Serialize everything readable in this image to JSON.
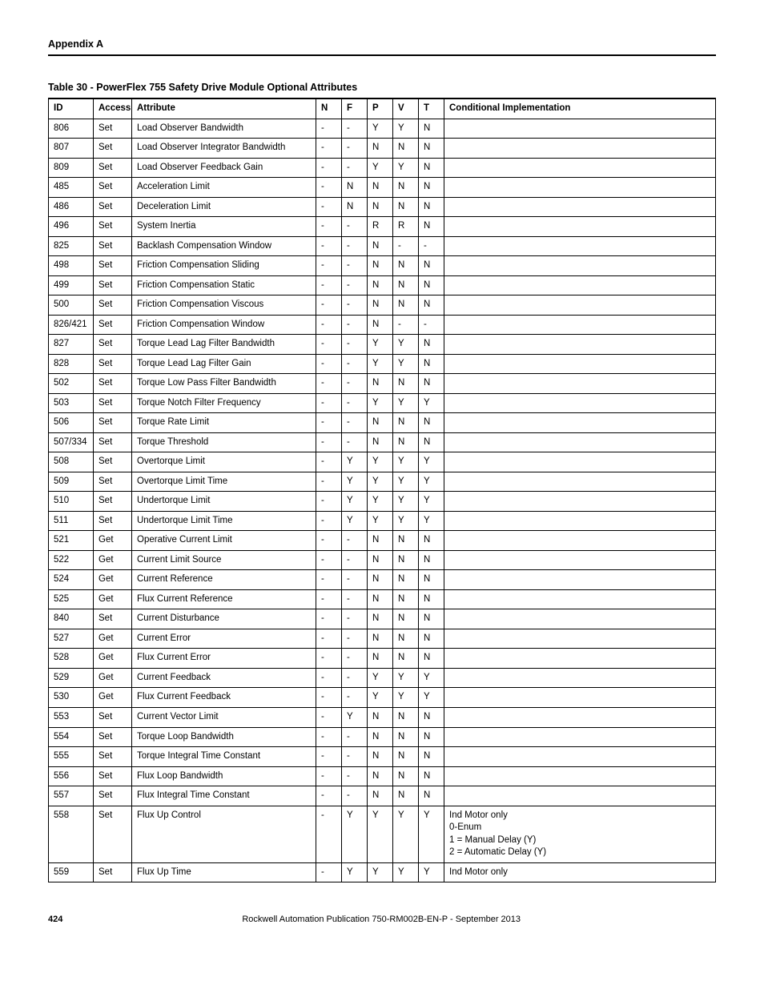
{
  "appendix_label": "Appendix A",
  "table_caption": "Table 30 - PowerFlex 755 Safety Drive Module Optional Attributes",
  "columns": [
    "ID",
    "Access",
    "Attribute",
    "N",
    "F",
    "P",
    "V",
    "T",
    "Conditional Implementation"
  ],
  "rows": [
    {
      "id": "806",
      "access": "Set",
      "attr": "Load Observer Bandwidth",
      "n": "-",
      "f": "-",
      "p": "Y",
      "v": "Y",
      "t": "N",
      "cond": ""
    },
    {
      "id": "807",
      "access": "Set",
      "attr": "Load Observer Integrator Bandwidth",
      "n": "-",
      "f": "-",
      "p": "N",
      "v": "N",
      "t": "N",
      "cond": ""
    },
    {
      "id": "809",
      "access": "Set",
      "attr": "Load Observer Feedback Gain",
      "n": "-",
      "f": "-",
      "p": "Y",
      "v": "Y",
      "t": "N",
      "cond": ""
    },
    {
      "id": "485",
      "access": "Set",
      "attr": "Acceleration Limit",
      "n": "-",
      "f": "N",
      "p": "N",
      "v": "N",
      "t": "N",
      "cond": ""
    },
    {
      "id": "486",
      "access": "Set",
      "attr": "Deceleration Limit",
      "n": "-",
      "f": "N",
      "p": "N",
      "v": "N",
      "t": "N",
      "cond": ""
    },
    {
      "id": "496",
      "access": "Set",
      "attr": "System Inertia",
      "n": "-",
      "f": "-",
      "p": "R",
      "v": "R",
      "t": "N",
      "cond": ""
    },
    {
      "id": "825",
      "access": "Set",
      "attr": "Backlash Compensation Window",
      "n": "-",
      "f": "-",
      "p": "N",
      "v": "-",
      "t": "-",
      "cond": ""
    },
    {
      "id": "498",
      "access": "Set",
      "attr": "Friction Compensation Sliding",
      "n": "-",
      "f": "-",
      "p": "N",
      "v": "N",
      "t": "N",
      "cond": ""
    },
    {
      "id": "499",
      "access": "Set",
      "attr": "Friction Compensation Static",
      "n": "-",
      "f": "-",
      "p": "N",
      "v": "N",
      "t": "N",
      "cond": ""
    },
    {
      "id": "500",
      "access": "Set",
      "attr": "Friction Compensation Viscous",
      "n": "-",
      "f": "-",
      "p": "N",
      "v": "N",
      "t": "N",
      "cond": ""
    },
    {
      "id": "826/421",
      "access": "Set",
      "attr": "Friction Compensation Window",
      "n": "-",
      "f": "-",
      "p": "N",
      "v": "-",
      "t": "-",
      "cond": ""
    },
    {
      "id": "827",
      "access": "Set",
      "attr": "Torque Lead Lag Filter Bandwidth",
      "n": "-",
      "f": "-",
      "p": "Y",
      "v": "Y",
      "t": "N",
      "cond": ""
    },
    {
      "id": "828",
      "access": "Set",
      "attr": "Torque Lead Lag Filter Gain",
      "n": "-",
      "f": "-",
      "p": "Y",
      "v": "Y",
      "t": "N",
      "cond": ""
    },
    {
      "id": "502",
      "access": "Set",
      "attr": "Torque Low Pass Filter Bandwidth",
      "n": "-",
      "f": "-",
      "p": "N",
      "v": "N",
      "t": "N",
      "cond": ""
    },
    {
      "id": "503",
      "access": "Set",
      "attr": "Torque Notch Filter Frequency",
      "n": "-",
      "f": "-",
      "p": "Y",
      "v": "Y",
      "t": "Y",
      "cond": ""
    },
    {
      "id": "506",
      "access": "Set",
      "attr": "Torque Rate Limit",
      "n": "-",
      "f": "-",
      "p": "N",
      "v": "N",
      "t": "N",
      "cond": ""
    },
    {
      "id": "507/334",
      "access": "Set",
      "attr": "Torque Threshold",
      "n": "-",
      "f": "-",
      "p": "N",
      "v": "N",
      "t": "N",
      "cond": ""
    },
    {
      "id": "508",
      "access": "Set",
      "attr": "Overtorque Limit",
      "n": "-",
      "f": "Y",
      "p": "Y",
      "v": "Y",
      "t": "Y",
      "cond": ""
    },
    {
      "id": "509",
      "access": "Set",
      "attr": "Overtorque Limit Time",
      "n": "-",
      "f": "Y",
      "p": "Y",
      "v": "Y",
      "t": "Y",
      "cond": ""
    },
    {
      "id": "510",
      "access": "Set",
      "attr": "Undertorque Limit",
      "n": "-",
      "f": "Y",
      "p": "Y",
      "v": "Y",
      "t": "Y",
      "cond": ""
    },
    {
      "id": "511",
      "access": "Set",
      "attr": "Undertorque Limit Time",
      "n": "-",
      "f": "Y",
      "p": "Y",
      "v": "Y",
      "t": "Y",
      "cond": ""
    },
    {
      "id": "521",
      "access": "Get",
      "attr": "Operative Current Limit",
      "n": "-",
      "f": "-",
      "p": "N",
      "v": "N",
      "t": "N",
      "cond": ""
    },
    {
      "id": "522",
      "access": "Get",
      "attr": "Current Limit Source",
      "n": "-",
      "f": "-",
      "p": "N",
      "v": "N",
      "t": "N",
      "cond": ""
    },
    {
      "id": "524",
      "access": "Get",
      "attr": "Current Reference",
      "n": "-",
      "f": "-",
      "p": "N",
      "v": "N",
      "t": "N",
      "cond": ""
    },
    {
      "id": "525",
      "access": "Get",
      "attr": "Flux Current Reference",
      "n": "-",
      "f": "-",
      "p": "N",
      "v": "N",
      "t": "N",
      "cond": ""
    },
    {
      "id": "840",
      "access": "Set",
      "attr": "Current Disturbance",
      "n": "-",
      "f": "-",
      "p": "N",
      "v": "N",
      "t": "N",
      "cond": ""
    },
    {
      "id": "527",
      "access": "Get",
      "attr": "Current Error",
      "n": "-",
      "f": "-",
      "p": "N",
      "v": "N",
      "t": "N",
      "cond": ""
    },
    {
      "id": "528",
      "access": "Get",
      "attr": "Flux Current Error",
      "n": "-",
      "f": "-",
      "p": "N",
      "v": "N",
      "t": "N",
      "cond": ""
    },
    {
      "id": "529",
      "access": "Get",
      "attr": "Current Feedback",
      "n": "-",
      "f": "-",
      "p": "Y",
      "v": "Y",
      "t": "Y",
      "cond": ""
    },
    {
      "id": "530",
      "access": "Get",
      "attr": "Flux Current Feedback",
      "n": "-",
      "f": "-",
      "p": "Y",
      "v": "Y",
      "t": "Y",
      "cond": ""
    },
    {
      "id": "553",
      "access": "Set",
      "attr": "Current Vector Limit",
      "n": "-",
      "f": "Y",
      "p": "N",
      "v": "N",
      "t": "N",
      "cond": ""
    },
    {
      "id": "554",
      "access": "Set",
      "attr": "Torque Loop Bandwidth",
      "n": "-",
      "f": "-",
      "p": "N",
      "v": "N",
      "t": "N",
      "cond": ""
    },
    {
      "id": "555",
      "access": "Set",
      "attr": "Torque Integral Time Constant",
      "n": "-",
      "f": "-",
      "p": "N",
      "v": "N",
      "t": "N",
      "cond": ""
    },
    {
      "id": "556",
      "access": "Set",
      "attr": "Flux Loop Bandwidth",
      "n": "-",
      "f": "-",
      "p": "N",
      "v": "N",
      "t": "N",
      "cond": ""
    },
    {
      "id": "557",
      "access": "Set",
      "attr": "Flux Integral Time Constant",
      "n": "-",
      "f": "-",
      "p": "N",
      "v": "N",
      "t": "N",
      "cond": ""
    },
    {
      "id": "558",
      "access": "Set",
      "attr": "Flux Up Control",
      "n": "-",
      "f": "Y",
      "p": "Y",
      "v": "Y",
      "t": "Y",
      "cond": "Ind Motor only\n0-Enum\n1 = Manual Delay (Y)\n2 = Automatic Delay (Y)"
    },
    {
      "id": "559",
      "access": "Set",
      "attr": "Flux Up Time",
      "n": "-",
      "f": "Y",
      "p": "Y",
      "v": "Y",
      "t": "Y",
      "cond": "Ind Motor only"
    }
  ],
  "footer_page": "424",
  "footer_publication": "Rockwell Automation Publication 750-RM002B-EN-P - September 2013"
}
